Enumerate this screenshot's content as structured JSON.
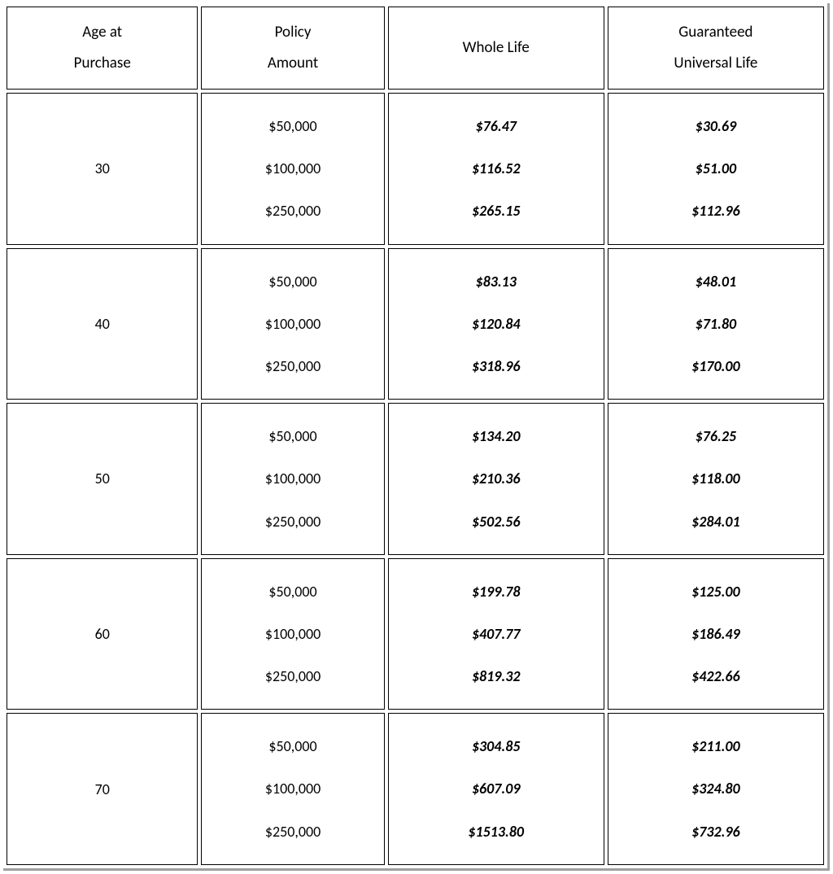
{
  "table": {
    "type": "table",
    "background_color": "#ffffff",
    "border_color": "#000000",
    "shadow_color": "#a0a0a0",
    "font_family": "Calibri",
    "header_fontsize": 19,
    "cell_fontsize": 18,
    "columns": [
      {
        "key": "age",
        "label_line1": "Age at",
        "label_line2": "Purchase",
        "width": "23%",
        "align": "center"
      },
      {
        "key": "policy",
        "label_line1": "Policy",
        "label_line2": "Amount",
        "width": "22%",
        "align": "center"
      },
      {
        "key": "whole",
        "label_line1": "Whole Life",
        "label_line2": "",
        "width": "26%",
        "align": "center",
        "bold_italic": true
      },
      {
        "key": "gul",
        "label_line1": "Guaranteed",
        "label_line2": "Universal Life",
        "width": "26%",
        "align": "center",
        "bold_italic": true
      }
    ],
    "rows": [
      {
        "age": "30",
        "policy": [
          "$50,000",
          "$100,000",
          "$250,000"
        ],
        "whole": [
          "$76.47",
          "$116.52",
          "$265.15"
        ],
        "gul": [
          "$30.69",
          "$51.00",
          "$112.96"
        ]
      },
      {
        "age": "40",
        "policy": [
          "$50,000",
          "$100,000",
          "$250,000"
        ],
        "whole": [
          "$83.13",
          "$120.84",
          "$318.96"
        ],
        "gul": [
          "$48.01",
          "$71.80",
          "$170.00"
        ]
      },
      {
        "age": "50",
        "policy": [
          "$50,000",
          "$100,000",
          "$250,000"
        ],
        "whole": [
          "$134.20",
          "$210.36",
          "$502.56"
        ],
        "gul": [
          "$76.25",
          "$118.00",
          "$284.01"
        ]
      },
      {
        "age": "60",
        "policy": [
          "$50,000",
          "$100,000",
          "$250,000"
        ],
        "whole": [
          "$199.78",
          "$407.77",
          "$819.32"
        ],
        "gul": [
          "$125.00",
          "$186.49",
          "$422.66"
        ]
      },
      {
        "age": "70",
        "policy": [
          "$50,000",
          "$100,000",
          "$250,000"
        ],
        "whole": [
          "$304.85",
          "$607.09",
          "$1513.80"
        ],
        "gul": [
          "$211.00",
          "$324.80",
          "$732.96"
        ]
      }
    ]
  }
}
